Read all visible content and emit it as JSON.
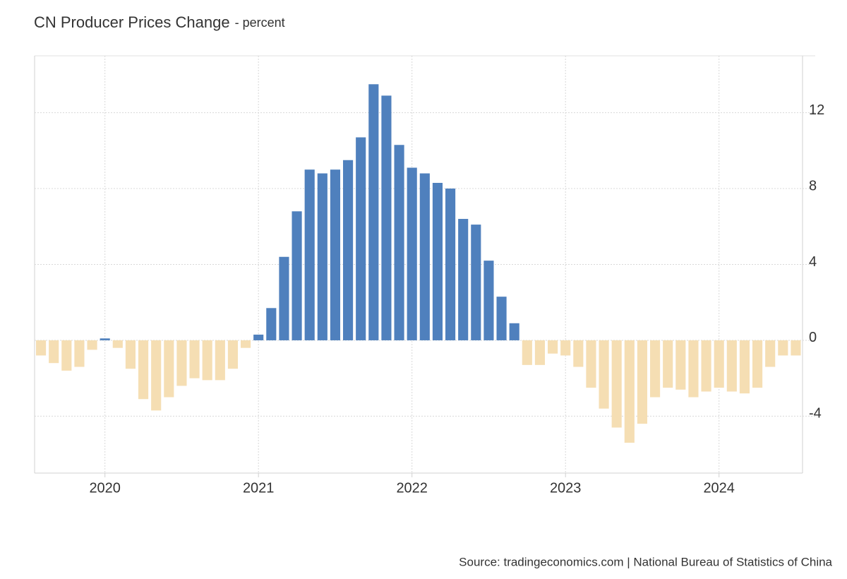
{
  "chart_data": {
    "type": "bar",
    "title": "CN Producer Prices Change",
    "subtitle": "- percent",
    "source": "Source: tradingeconomics.com | National Bureau of Statistics of China",
    "categories": [
      null,
      null,
      null,
      null,
      null,
      "2020",
      null,
      null,
      null,
      null,
      null,
      null,
      null,
      null,
      null,
      null,
      null,
      "2021",
      null,
      null,
      null,
      null,
      null,
      null,
      null,
      null,
      null,
      null,
      null,
      "2022",
      null,
      null,
      null,
      null,
      null,
      null,
      null,
      null,
      null,
      null,
      null,
      "2023",
      null,
      null,
      null,
      null,
      null,
      null,
      null,
      null,
      null,
      null,
      null,
      "2024",
      null,
      null,
      null,
      null,
      null,
      null
    ],
    "values": [
      -0.8,
      -1.2,
      -1.6,
      -1.4,
      -0.5,
      0.1,
      -0.4,
      -1.5,
      -3.1,
      -3.7,
      -3.0,
      -2.4,
      -2.0,
      -2.1,
      -2.1,
      -1.5,
      -0.4,
      0.3,
      1.7,
      4.4,
      6.8,
      9.0,
      8.8,
      9.0,
      9.5,
      10.7,
      13.5,
      12.9,
      10.3,
      9.1,
      8.8,
      8.3,
      8.0,
      6.4,
      6.1,
      4.2,
      2.3,
      0.9,
      -1.3,
      -1.3,
      -0.7,
      -0.8,
      -1.4,
      -2.5,
      -3.6,
      -4.6,
      -5.4,
      -4.4,
      -3.0,
      -2.5,
      -2.6,
      -3.0,
      -2.7,
      -2.5,
      -2.7,
      -2.8,
      -2.5,
      -1.4,
      -0.8,
      -0.8
    ],
    "positive_color": "#4f80bd",
    "negative_color": "#f5deb3",
    "ylim": [
      -7,
      15
    ],
    "yticks": [
      -4,
      0,
      4,
      8,
      12
    ],
    "grid": true
  }
}
